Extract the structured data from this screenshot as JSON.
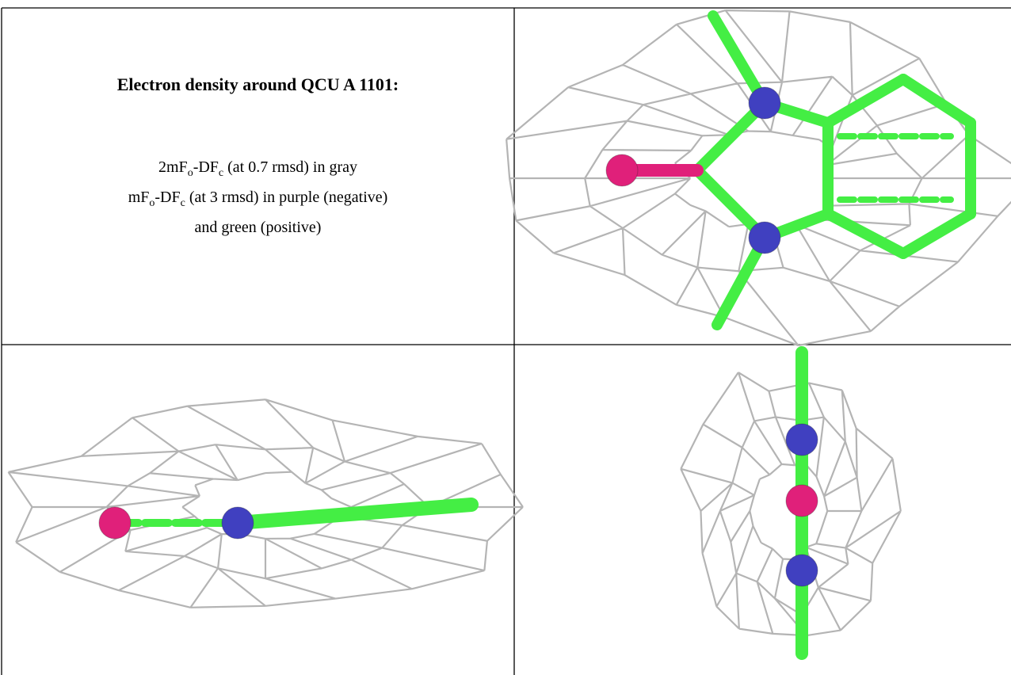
{
  "table": {
    "caption_cell": {
      "title": "Electron density around QCU A 1101:",
      "lines": [
        [
          {
            "text": "2mF"
          },
          {
            "sub": "o"
          },
          {
            "text": "-DF"
          },
          {
            "sub": "c"
          },
          {
            "text": " (at 0.7 rmsd) in gray"
          }
        ],
        [
          {
            "text": "mF"
          },
          {
            "sub": "o"
          },
          {
            "text": "-DF"
          },
          {
            "sub": "c"
          },
          {
            "text": " (at 3 rmsd) in purple (negative)"
          }
        ],
        [
          {
            "text": "and green (positive)"
          }
        ]
      ]
    }
  }
}
